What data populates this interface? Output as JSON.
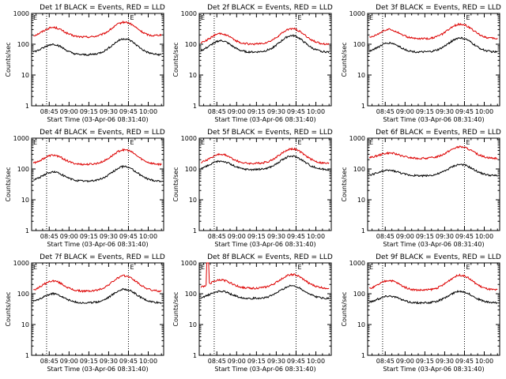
{
  "colors": {
    "events": "#000000",
    "lld": "#dd0000",
    "background": "#ffffff",
    "axes": "#000000"
  },
  "common": {
    "ylabel": "Counts/sec",
    "xlabel": "Start Time (03-Apr-06 08:31:40)",
    "xticks": [
      "08:45",
      "09:00",
      "09:15",
      "09:30",
      "09:45",
      "10:00"
    ],
    "yticks": [
      "1",
      "10",
      "100",
      "1000"
    ],
    "marker_E": "E",
    "y_scale": "log",
    "ylim": [
      1,
      1000
    ],
    "xlim": [
      "08:31:40",
      "10:11:40"
    ],
    "dotted_lines": [
      "08:43",
      "09:45"
    ]
  },
  "chart_data": [
    {
      "type": "line",
      "title": "Det 1f BLACK = Events, RED = LLD",
      "x_endpoints": [
        "08:33",
        "10:10"
      ],
      "series": [
        {
          "color": "#dd0000",
          "y_start": 170,
          "y_peak1": 350,
          "y_trough": 170,
          "y_peak2": 520,
          "y_end": 200
        },
        {
          "color": "#000000",
          "y_start": 50,
          "y_peak1": 100,
          "y_trough": 45,
          "y_peak2": 150,
          "y_end": 45
        }
      ]
    },
    {
      "type": "line",
      "title": "Det 2f BLACK = Events, RED = LLD",
      "x_endpoints": [
        "08:33",
        "10:10"
      ],
      "series": [
        {
          "color": "#dd0000",
          "y_start": 100,
          "y_peak1": 220,
          "y_trough": 100,
          "y_peak2": 320,
          "y_end": 100
        },
        {
          "color": "#000000",
          "y_start": 55,
          "y_peak1": 130,
          "y_trough": 55,
          "y_peak2": 190,
          "y_end": 55
        }
      ]
    },
    {
      "type": "line",
      "title": "Det 3f BLACK = Events, RED = LLD",
      "x_endpoints": [
        "08:33",
        "10:10"
      ],
      "series": [
        {
          "color": "#dd0000",
          "y_start": 150,
          "y_peak1": 300,
          "y_trough": 150,
          "y_peak2": 450,
          "y_end": 150
        },
        {
          "color": "#000000",
          "y_start": 55,
          "y_peak1": 110,
          "y_trough": 55,
          "y_peak2": 160,
          "y_end": 55
        }
      ]
    },
    {
      "type": "line",
      "title": "Det 4f BLACK = Events, RED = LLD",
      "x_endpoints": [
        "08:33",
        "10:10"
      ],
      "series": [
        {
          "color": "#dd0000",
          "y_start": 140,
          "y_peak1": 280,
          "y_trough": 140,
          "y_peak2": 420,
          "y_end": 140
        },
        {
          "color": "#000000",
          "y_start": 40,
          "y_peak1": 80,
          "y_trough": 40,
          "y_peak2": 120,
          "y_end": 40
        }
      ]
    },
    {
      "type": "line",
      "title": "Det 5f BLACK = Events, RED = LLD",
      "x_endpoints": [
        "08:33",
        "10:10"
      ],
      "series": [
        {
          "color": "#dd0000",
          "y_start": 150,
          "y_peak1": 300,
          "y_trough": 150,
          "y_peak2": 450,
          "y_end": 150
        },
        {
          "color": "#000000",
          "y_start": 95,
          "y_peak1": 180,
          "y_trough": 95,
          "y_peak2": 260,
          "y_end": 95
        }
      ]
    },
    {
      "type": "line",
      "title": "Det 6f BLACK = Events, RED = LLD",
      "x_endpoints": [
        "08:33",
        "10:10"
      ],
      "series": [
        {
          "color": "#dd0000",
          "y_start": 220,
          "y_peak1": 330,
          "y_trough": 220,
          "y_peak2": 520,
          "y_end": 220
        },
        {
          "color": "#000000",
          "y_start": 60,
          "y_peak1": 90,
          "y_trough": 60,
          "y_peak2": 140,
          "y_end": 60
        }
      ]
    },
    {
      "type": "line",
      "title": "Det 7f BLACK = Events, RED = LLD",
      "x_endpoints": [
        "08:33",
        "10:10"
      ],
      "series": [
        {
          "color": "#dd0000",
          "y_start": 120,
          "y_peak1": 260,
          "y_trough": 120,
          "y_peak2": 380,
          "y_end": 120
        },
        {
          "color": "#000000",
          "y_start": 50,
          "y_peak1": 100,
          "y_trough": 50,
          "y_peak2": 140,
          "y_end": 50
        }
      ]
    },
    {
      "type": "line",
      "title": "Det 8f BLACK = Events, RED = LLD",
      "x_endpoints": [
        "08:33",
        "10:10"
      ],
      "spike": {
        "x": "08:38",
        "y": 1000
      },
      "series": [
        {
          "color": "#dd0000",
          "y_start": 150,
          "y_peak1": 280,
          "y_trough": 150,
          "y_peak2": 420,
          "y_end": 150
        },
        {
          "color": "#000000",
          "y_start": 70,
          "y_peak1": 120,
          "y_trough": 70,
          "y_peak2": 180,
          "y_end": 70
        }
      ]
    },
    {
      "type": "line",
      "title": "Det 9f BLACK = Events, RED = LLD",
      "x_endpoints": [
        "08:33",
        "10:10"
      ],
      "series": [
        {
          "color": "#dd0000",
          "y_start": 130,
          "y_peak1": 270,
          "y_trough": 130,
          "y_peak2": 400,
          "y_end": 130
        },
        {
          "color": "#000000",
          "y_start": 50,
          "y_peak1": 85,
          "y_trough": 50,
          "y_peak2": 120,
          "y_end": 50
        }
      ]
    }
  ]
}
